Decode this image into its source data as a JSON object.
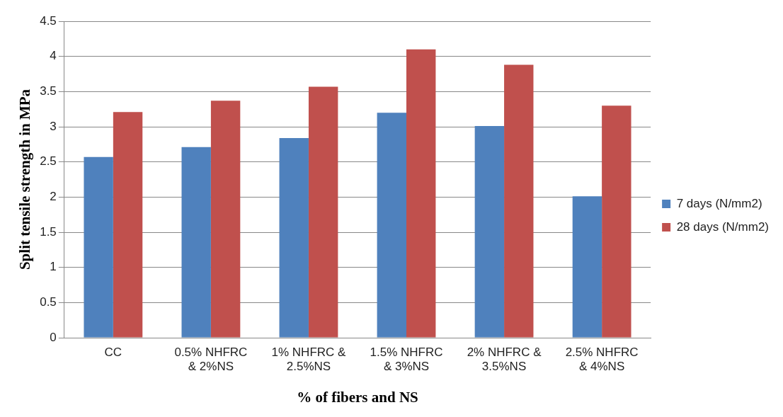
{
  "chart_data": {
    "type": "bar",
    "xlabel": "% of fibers and NS",
    "ylabel": "Split tensile strength in MPa",
    "categories": [
      "CC",
      "0.5% NHFRC & 2%NS",
      "1% NHFRC & 2.5%NS",
      "1.5% NHFRC & 3%NS",
      "2% NHFRC & 3.5%NS",
      "2.5% NHFRC & 4%NS"
    ],
    "series": [
      {
        "name": "7 days (N/mm2)",
        "color": "#4f81bd",
        "values": [
          2.57,
          2.71,
          2.84,
          3.2,
          3.01,
          2.01
        ]
      },
      {
        "name": "28 days (N/mm2)",
        "color": "#c0504d",
        "values": [
          3.21,
          3.37,
          3.57,
          4.1,
          3.88,
          3.3
        ]
      }
    ],
    "ylim": [
      0,
      4.5
    ],
    "yticks": [
      0,
      0.5,
      1,
      1.5,
      2,
      2.5,
      3,
      3.5,
      4,
      4.5
    ],
    "grid": "y",
    "legend": "right"
  }
}
